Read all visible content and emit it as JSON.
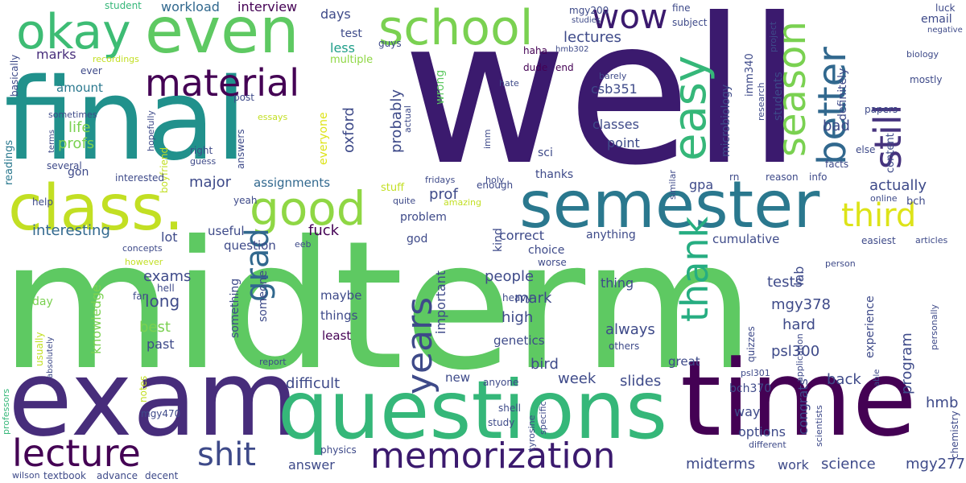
{
  "words": [
    {
      "text": "well",
      "color": "#3b1a6e"
    },
    {
      "text": "midterm",
      "color": "#5ec962"
    },
    {
      "text": "final",
      "color": "#21918c"
    },
    {
      "text": "exam",
      "color": "#472d7b"
    },
    {
      "text": "time",
      "color": "#440154"
    },
    {
      "text": "questions",
      "color": "#35b779"
    },
    {
      "text": "semester",
      "color": "#2a788e"
    },
    {
      "text": "class.",
      "color": "#c2df23"
    },
    {
      "text": "even",
      "color": "#5ec962"
    },
    {
      "text": "okay",
      "color": "#3dbc74"
    },
    {
      "text": "school",
      "color": "#7ad151"
    },
    {
      "text": "good",
      "color": "#8fd744"
    },
    {
      "text": "easy",
      "color": "#35b779"
    },
    {
      "text": "wow",
      "color": "#3b1a6e"
    },
    {
      "text": "season",
      "color": "#7ad151"
    },
    {
      "text": "better",
      "color": "#31688e"
    },
    {
      "text": "still",
      "color": "#46337e"
    },
    {
      "text": "material",
      "color": "#440154"
    },
    {
      "text": "memorization",
      "color": "#3b1a6e"
    },
    {
      "text": "lecture",
      "color": "#440154"
    },
    {
      "text": "thank",
      "color": "#26ad81"
    },
    {
      "text": "years",
      "color": "#3e4a89"
    },
    {
      "text": "third",
      "color": "#dde318"
    },
    {
      "text": "grad",
      "color": "#31688e"
    },
    {
      "text": "shit",
      "color": "#3e4a89"
    },
    {
      "text": "interview",
      "color": "#440154"
    },
    {
      "text": "workload",
      "color": "#31688e"
    },
    {
      "text": "student",
      "color": "#35b779"
    },
    {
      "text": "days",
      "color": "#3e4a89"
    },
    {
      "text": "test",
      "color": "#3e4a89"
    },
    {
      "text": "lectures",
      "color": "#3e4a89"
    },
    {
      "text": "less",
      "color": "#1f9e89"
    },
    {
      "text": "marks",
      "color": "#472d7b"
    },
    {
      "text": "multiple",
      "color": "#8fd744"
    },
    {
      "text": "recordings",
      "color": "#c2df23"
    },
    {
      "text": "amount",
      "color": "#2a788e"
    },
    {
      "text": "ever",
      "color": "#3e4a89"
    },
    {
      "text": "basically",
      "color": "#3e4a89"
    },
    {
      "text": "guys",
      "color": "#3e4a89"
    },
    {
      "text": "haha",
      "color": "#440154"
    },
    {
      "text": "hmb302",
      "color": "#3e4a89"
    },
    {
      "text": "dude",
      "color": "#440154"
    },
    {
      "text": "end",
      "color": "#440154"
    },
    {
      "text": "wrong",
      "color": "#5ec962"
    },
    {
      "text": "everyone",
      "color": "#dde318"
    },
    {
      "text": "oxford",
      "color": "#3e4a89"
    },
    {
      "text": "probably",
      "color": "#3e4a89"
    },
    {
      "text": "life",
      "color": "#7ad151"
    },
    {
      "text": "profs",
      "color": "#7ad151"
    },
    {
      "text": "post",
      "color": "#3e4a89"
    },
    {
      "text": "answers",
      "color": "#3e4a89"
    },
    {
      "text": "essays",
      "color": "#c2df23"
    },
    {
      "text": "actual",
      "color": "#3e4a89"
    },
    {
      "text": "sometimes",
      "color": "#3e4a89"
    },
    {
      "text": "hopefully",
      "color": "#3e4a89"
    },
    {
      "text": "readings",
      "color": "#2a788e"
    },
    {
      "text": "terms",
      "color": "#3e4a89"
    },
    {
      "text": "boyfriend",
      "color": "#c2df23"
    },
    {
      "text": "right",
      "color": "#3e4a89"
    },
    {
      "text": "guess",
      "color": "#3e4a89"
    },
    {
      "text": "several",
      "color": "#3e4a89"
    },
    {
      "text": "gon",
      "color": "#3e4a89"
    },
    {
      "text": "interested",
      "color": "#3e4a89"
    },
    {
      "text": "major",
      "color": "#3e4a89"
    },
    {
      "text": "assignments",
      "color": "#31688e"
    },
    {
      "text": "help",
      "color": "#3e4a89"
    },
    {
      "text": "yeah",
      "color": "#3e4a89"
    },
    {
      "text": "interesting",
      "color": "#31688e"
    },
    {
      "text": "lot",
      "color": "#3e4a89"
    },
    {
      "text": "useful",
      "color": "#3e4a89"
    },
    {
      "text": "fuck",
      "color": "#440154"
    },
    {
      "text": "question",
      "color": "#3e4a89"
    },
    {
      "text": "eeb",
      "color": "#3e4a89"
    },
    {
      "text": "concepts",
      "color": "#3e4a89"
    },
    {
      "text": "however",
      "color": "#c2df23"
    },
    {
      "text": "exams",
      "color": "#3e4a89"
    },
    {
      "text": "hell",
      "color": "#3e4a89"
    },
    {
      "text": "far",
      "color": "#3e4a89"
    },
    {
      "text": "long",
      "color": "#3e4a89"
    },
    {
      "text": "day",
      "color": "#7ad151"
    },
    {
      "text": "knowledge",
      "color": "#7ad151"
    },
    {
      "text": "best",
      "color": "#7ad151"
    },
    {
      "text": "past",
      "color": "#3e4a89"
    },
    {
      "text": "usually",
      "color": "#c2df23"
    },
    {
      "text": "absolutely",
      "color": "#3e4a89"
    },
    {
      "text": "notes",
      "color": "#c2df23"
    },
    {
      "text": "mgy470",
      "color": "#3e4a89"
    },
    {
      "text": "professors",
      "color": "#35b779"
    },
    {
      "text": "wilson",
      "color": "#3e4a89"
    },
    {
      "text": "textbook",
      "color": "#3e4a89"
    },
    {
      "text": "advance",
      "color": "#3e4a89"
    },
    {
      "text": "decent",
      "color": "#3e4a89"
    },
    {
      "text": "report",
      "color": "#3e4a89"
    },
    {
      "text": "someone",
      "color": "#3e4a89"
    },
    {
      "text": "something",
      "color": "#3e4a89"
    },
    {
      "text": "maybe",
      "color": "#3e4a89"
    },
    {
      "text": "things",
      "color": "#3e4a89"
    },
    {
      "text": "least",
      "color": "#440154"
    },
    {
      "text": "difficult",
      "color": "#3e4a89"
    },
    {
      "text": "answer",
      "color": "#3e4a89"
    },
    {
      "text": "physics",
      "color": "#3e4a89"
    },
    {
      "text": "new",
      "color": "#3e4a89"
    },
    {
      "text": "stuff",
      "color": "#c2df23"
    },
    {
      "text": "problem",
      "color": "#3e4a89"
    },
    {
      "text": "god",
      "color": "#3e4a89"
    },
    {
      "text": "important",
      "color": "#3e4a89"
    },
    {
      "text": "kind",
      "color": "#3e4a89"
    },
    {
      "text": "prof",
      "color": "#3e4a89"
    },
    {
      "text": "enough",
      "color": "#3e4a89"
    },
    {
      "text": "amazing",
      "color": "#c2df23"
    },
    {
      "text": "quite",
      "color": "#3e4a89"
    },
    {
      "text": "fridays",
      "color": "#3e4a89"
    },
    {
      "text": "holy",
      "color": "#3e4a89"
    },
    {
      "text": "imm",
      "color": "#3e4a89"
    },
    {
      "text": "thanks",
      "color": "#3e4a89"
    },
    {
      "text": "sci",
      "color": "#3e4a89"
    },
    {
      "text": "people",
      "color": "#3e4a89"
    },
    {
      "text": "mark",
      "color": "#3e4a89"
    },
    {
      "text": "high",
      "color": "#3e4a89"
    },
    {
      "text": "genetics",
      "color": "#3e4a89"
    },
    {
      "text": "bird",
      "color": "#3e4a89"
    },
    {
      "text": "week",
      "color": "#3e4a89"
    },
    {
      "text": "slides",
      "color": "#3e4a89"
    },
    {
      "text": "correct",
      "color": "#3e4a89"
    },
    {
      "text": "choice",
      "color": "#3e4a89"
    },
    {
      "text": "worse",
      "color": "#3e4a89"
    },
    {
      "text": "anything",
      "color": "#3e4a89"
    },
    {
      "text": "thing",
      "color": "#3e4a89"
    },
    {
      "text": "always",
      "color": "#3e4a89"
    },
    {
      "text": "heavy",
      "color": "#3e4a89"
    },
    {
      "text": "others",
      "color": "#3e4a89"
    },
    {
      "text": "great",
      "color": "#3e4a89"
    },
    {
      "text": "anyone",
      "color": "#3e4a89"
    },
    {
      "text": "shell",
      "color": "#3e4a89"
    },
    {
      "text": "study",
      "color": "#3e4a89"
    },
    {
      "text": "specific",
      "color": "#3e4a89"
    },
    {
      "text": "tyrosine",
      "color": "#3e4a89"
    },
    {
      "text": "mgy200",
      "color": "#3e4a89"
    },
    {
      "text": "studies",
      "color": "#3e4a89"
    },
    {
      "text": "fine",
      "color": "#3e4a89"
    },
    {
      "text": "subject",
      "color": "#3e4a89"
    },
    {
      "text": "project",
      "color": "#3e4a89"
    },
    {
      "text": "luck",
      "color": "#3e4a89"
    },
    {
      "text": "email",
      "color": "#3e4a89"
    },
    {
      "text": "negative",
      "color": "#3e4a89"
    },
    {
      "text": "biology",
      "color": "#3e4a89"
    },
    {
      "text": "mostly",
      "color": "#3e4a89"
    },
    {
      "text": "imm340",
      "color": "#3e4a89"
    },
    {
      "text": "microbiology",
      "color": "#3e4a89"
    },
    {
      "text": "csb351",
      "color": "#3e4a89"
    },
    {
      "text": "classes",
      "color": "#3e4a89"
    },
    {
      "text": "point",
      "color": "#3e4a89"
    },
    {
      "text": "hate",
      "color": "#3e4a89"
    },
    {
      "text": "barely",
      "color": "#3e4a89"
    },
    {
      "text": "research",
      "color": "#3e4a89"
    },
    {
      "text": "students",
      "color": "#3e4a89"
    },
    {
      "text": "definitely",
      "color": "#3e4a89"
    },
    {
      "text": "bad",
      "color": "#3e4a89"
    },
    {
      "text": "papers",
      "color": "#3e4a89"
    },
    {
      "text": "content",
      "color": "#3e4a89"
    },
    {
      "text": "else",
      "color": "#3e4a89"
    },
    {
      "text": "facts",
      "color": "#3e4a89"
    },
    {
      "text": "info",
      "color": "#3e4a89"
    },
    {
      "text": "reason",
      "color": "#3e4a89"
    },
    {
      "text": "rn",
      "color": "#3e4a89"
    },
    {
      "text": "gpa",
      "color": "#3e4a89"
    },
    {
      "text": "actually",
      "color": "#3e4a89"
    },
    {
      "text": "online",
      "color": "#3e4a89"
    },
    {
      "text": "bch",
      "color": "#3e4a89"
    },
    {
      "text": "similar",
      "color": "#3e4a89"
    },
    {
      "text": "cumulative",
      "color": "#3e4a89"
    },
    {
      "text": "person",
      "color": "#3e4a89"
    },
    {
      "text": "easiest",
      "color": "#3e4a89"
    },
    {
      "text": "articles",
      "color": "#3e4a89"
    },
    {
      "text": "lab",
      "color": "#3e4a89"
    },
    {
      "text": "tests",
      "color": "#3e4a89"
    },
    {
      "text": "mgy378",
      "color": "#3e4a89"
    },
    {
      "text": "hard",
      "color": "#3e4a89"
    },
    {
      "text": "program",
      "color": "#3e4a89"
    },
    {
      "text": "experience",
      "color": "#3e4a89"
    },
    {
      "text": "personally",
      "color": "#3e4a89"
    },
    {
      "text": "application",
      "color": "#3e4a89"
    },
    {
      "text": "quizzes",
      "color": "#3e4a89"
    },
    {
      "text": "psl300",
      "color": "#3e4a89"
    },
    {
      "text": "psl301",
      "color": "#3e4a89"
    },
    {
      "text": "bch370",
      "color": "#3e4a89"
    },
    {
      "text": "congrats",
      "color": "#3e4a89"
    },
    {
      "text": "back",
      "color": "#3e4a89"
    },
    {
      "text": "hmb",
      "color": "#3e4a89"
    },
    {
      "text": "able",
      "color": "#3e4a89"
    },
    {
      "text": "scientists",
      "color": "#3e4a89"
    },
    {
      "text": "chemistry",
      "color": "#3e4a89"
    },
    {
      "text": "different",
      "color": "#3e4a89"
    },
    {
      "text": "way",
      "color": "#3e4a89"
    },
    {
      "text": "options",
      "color": "#3e4a89"
    },
    {
      "text": "work",
      "color": "#3e4a89"
    },
    {
      "text": "science",
      "color": "#3e4a89"
    },
    {
      "text": "midterms",
      "color": "#3e4a89"
    },
    {
      "text": "mgy277",
      "color": "#3e4a89"
    }
  ]
}
